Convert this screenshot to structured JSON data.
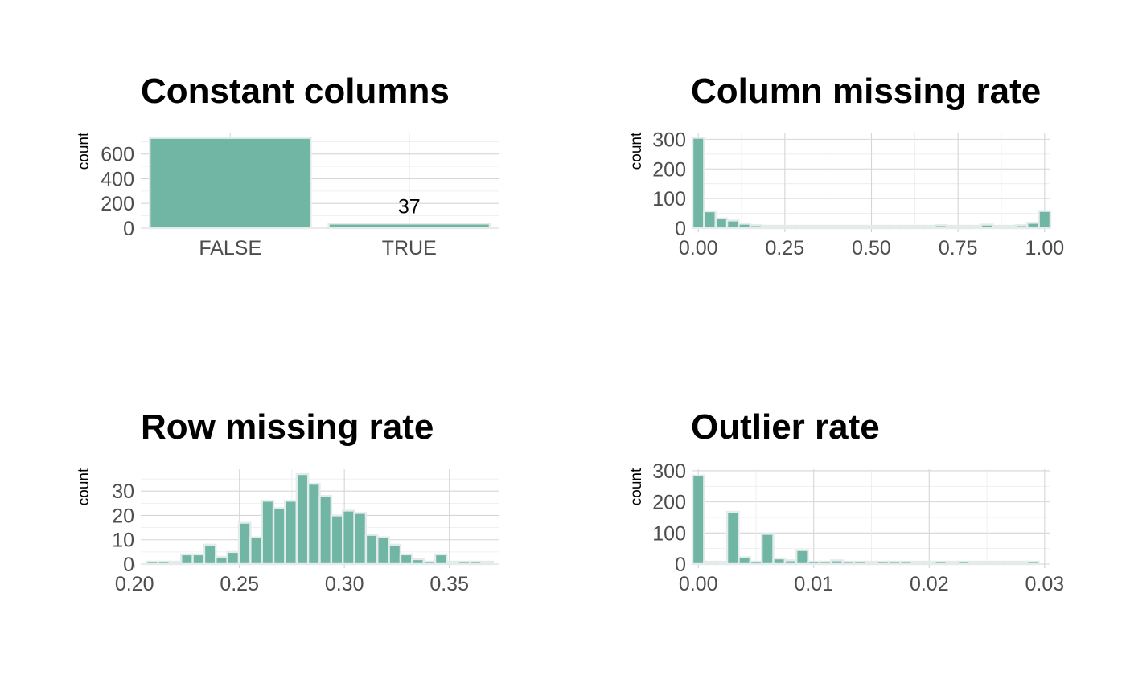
{
  "colors": {
    "bar_fill": "#71b5a5",
    "bar_stroke": "#e3ecea",
    "empty_fill": "#e7ebea"
  },
  "chart_data": [
    {
      "type": "bar",
      "title": "Constant columns",
      "ylabel": "count",
      "xlabel": "",
      "categories": [
        "FALSE",
        "TRUE"
      ],
      "values": [
        730,
        37
      ],
      "data_labels": [
        {
          "category": "TRUE",
          "text": "37"
        }
      ],
      "ylim": [
        0,
        767
      ],
      "y_ticks": [
        0,
        200,
        400,
        600
      ],
      "grid": true
    },
    {
      "type": "bar",
      "histogram": true,
      "title": "Column missing rate",
      "ylabel": "count",
      "xlabel": "",
      "bin_width": 0.0333,
      "x": [
        0.0,
        0.0333,
        0.0667,
        0.1,
        0.1333,
        0.1667,
        0.2,
        0.2333,
        0.2667,
        0.3,
        0.3333,
        0.3667,
        0.4,
        0.4333,
        0.4667,
        0.5,
        0.5333,
        0.5667,
        0.6,
        0.6333,
        0.6667,
        0.7,
        0.7333,
        0.7667,
        0.8,
        0.8333,
        0.8667,
        0.9,
        0.9333,
        0.9667,
        1.0
      ],
      "values": [
        305,
        57,
        33,
        26,
        15,
        10,
        7,
        4,
        5,
        4,
        0,
        0,
        4,
        2,
        1,
        5,
        3,
        4,
        2,
        1,
        0,
        10,
        2,
        7,
        2,
        12,
        5,
        2,
        10,
        18,
        58
      ],
      "xlim": [
        -0.0167,
        1.0167
      ],
      "ylim": [
        0,
        320
      ],
      "x_ticks": [
        0,
        0.25,
        0.5,
        0.75,
        1
      ],
      "x_tick_labels": [
        "0.00",
        "0.25",
        "0.50",
        "0.75",
        "1.00"
      ],
      "y_ticks": [
        0,
        100,
        200,
        300
      ],
      "grid": true
    },
    {
      "type": "bar",
      "histogram": true,
      "title": "Row missing rate",
      "ylabel": "count",
      "xlabel": "",
      "bin_width": 0.0055,
      "x": [
        0.2085,
        0.214,
        0.2195,
        0.225,
        0.2305,
        0.236,
        0.2415,
        0.247,
        0.2525,
        0.258,
        0.2635,
        0.269,
        0.2745,
        0.28,
        0.2855,
        0.291,
        0.2965,
        0.302,
        0.3075,
        0.313,
        0.3185,
        0.324,
        0.3295,
        0.335,
        0.3405,
        0.346,
        0.3515,
        0.357,
        0.3625,
        0.368
      ],
      "values": [
        1,
        1,
        0,
        4,
        4,
        8,
        3,
        5,
        17,
        11,
        26,
        23,
        26,
        37,
        33,
        28,
        20,
        22,
        21,
        12,
        11,
        8,
        4,
        2,
        1,
        4,
        0,
        1,
        1,
        0
      ],
      "xlim": [
        0.203,
        0.3735
      ],
      "ylim": [
        0,
        39
      ],
      "x_ticks": [
        0.2,
        0.25,
        0.3,
        0.35
      ],
      "x_tick_labels": [
        "0.20",
        "0.25",
        "0.30",
        "0.35"
      ],
      "y_ticks": [
        0,
        10,
        20,
        30
      ],
      "grid": true
    },
    {
      "type": "bar",
      "histogram": true,
      "title": "Outlier rate",
      "ylabel": "count",
      "xlabel": "",
      "bin_width": 0.001,
      "x": [
        0.0,
        0.001,
        0.002,
        0.003,
        0.004,
        0.005,
        0.006,
        0.007,
        0.008,
        0.009,
        0.01,
        0.011,
        0.012,
        0.013,
        0.014,
        0.015,
        0.016,
        0.017,
        0.018,
        0.019,
        0.02,
        0.021,
        0.022,
        0.023,
        0.024,
        0.025,
        0.026,
        0.027,
        0.028,
        0.029
      ],
      "values": [
        285,
        0,
        0,
        168,
        22,
        8,
        97,
        18,
        12,
        45,
        8,
        3,
        12,
        2,
        1,
        0,
        2,
        2,
        1,
        0,
        0,
        1,
        0,
        1,
        0,
        0,
        0,
        0,
        0,
        1
      ],
      "xlim": [
        -0.0005,
        0.0305
      ],
      "ylim": [
        0,
        305
      ],
      "x_ticks": [
        0,
        0.01,
        0.02,
        0.03
      ],
      "x_tick_labels": [
        "0.00",
        "0.01",
        "0.02",
        "0.03"
      ],
      "y_ticks": [
        0,
        100,
        200,
        300
      ],
      "grid": true
    }
  ]
}
